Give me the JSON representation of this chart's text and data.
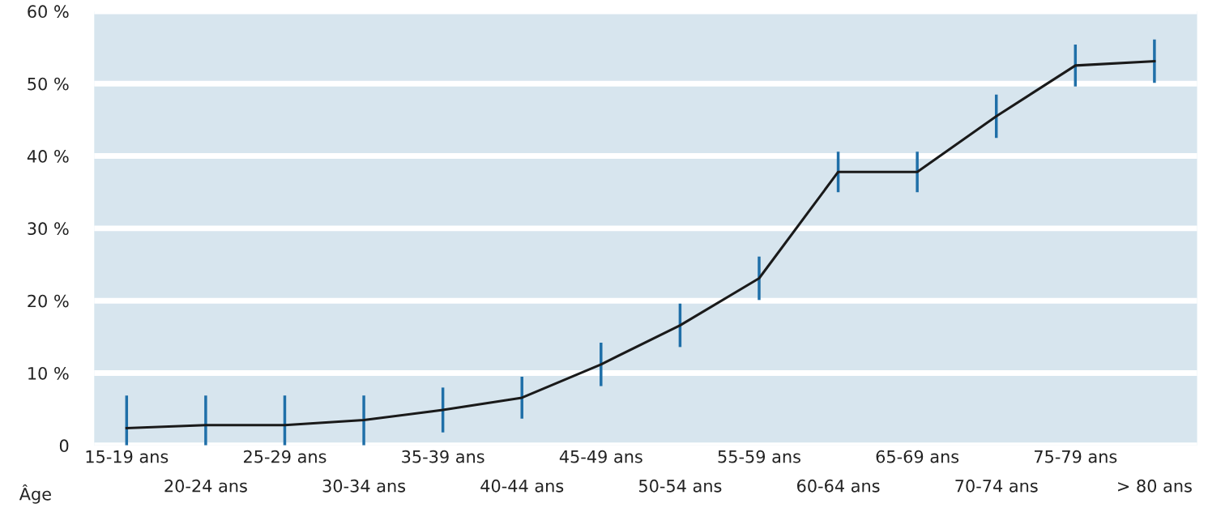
{
  "chart_data": {
    "type": "line",
    "xlabel": "Âge",
    "categories": [
      "15-19 ans",
      "20-24 ans",
      "25-29 ans",
      "30-34 ans",
      "35-39 ans",
      "40-44 ans",
      "45-49 ans",
      "50-54 ans",
      "55-59 ans",
      "60-64 ans",
      "65-69 ans",
      "70-74 ans",
      "75-79 ans",
      "> 80 ans"
    ],
    "series": [
      {
        "color": "#1a1a1a",
        "values": [
          2.4,
          2.8,
          2.8,
          3.5,
          4.9,
          6.6,
          11.2,
          16.6,
          23.1,
          37.8,
          37.8,
          45.5,
          52.5,
          53.1
        ],
        "errors": [
          [
            0,
            6.9
          ],
          [
            0,
            6.9
          ],
          [
            0,
            6.9
          ],
          [
            0,
            6.9
          ],
          3.1,
          2.9,
          3,
          3,
          3,
          2.8,
          2.8,
          3,
          2.9,
          3
        ]
      }
    ],
    "ylim": [
      0,
      60
    ],
    "yticks": [
      {
        "value": 0,
        "label": "0"
      },
      {
        "value": 10,
        "label": "10 %"
      },
      {
        "value": 20,
        "label": "20 %"
      },
      {
        "value": 30,
        "label": "30 %"
      },
      {
        "value": 40,
        "label": "40 %"
      },
      {
        "value": 50,
        "label": "50 %"
      },
      {
        "value": 60,
        "label": "60 %"
      }
    ],
    "grid": "y",
    "marker": "none",
    "line_style": "solid",
    "legend": false
  }
}
